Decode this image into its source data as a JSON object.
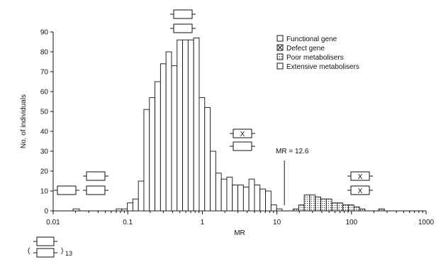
{
  "chart_data": {
    "type": "bar",
    "xlabel": "MR",
    "ylabel": "No. of individuals",
    "x_scale": "log",
    "xlim": [
      0.01,
      1000
    ],
    "ylim": [
      0,
      90
    ],
    "x_ticks": [
      "0.01",
      "0.1",
      "1",
      "10",
      "100",
      "1000"
    ],
    "y_ticks": [
      "0",
      "10",
      "20",
      "30",
      "40",
      "50",
      "60",
      "70",
      "80",
      "90"
    ],
    "legend": {
      "placement": "top-right",
      "entries": [
        "Functional gene",
        "Defect gene",
        "Poor metabolisers",
        "Extensive metabolisers"
      ]
    },
    "annotations": {
      "threshold_label": "MR = 12.6",
      "threshold_value": 12.6,
      "defect_mark": "X",
      "duplication_count": "13"
    },
    "series": [
      {
        "name": "Extensive metabolisers",
        "bins": [
          {
            "x0": 0.0185,
            "x1": 0.0225,
            "value": 1
          },
          {
            "x0": 0.0701,
            "x1": 0.0832,
            "value": 1
          },
          {
            "x0": 0.0832,
            "x1": 0.0987,
            "value": 1
          },
          {
            "x0": 0.0987,
            "x1": 0.1171,
            "value": 4
          },
          {
            "x0": 0.1171,
            "x1": 0.1388,
            "value": 6
          },
          {
            "x0": 0.1388,
            "x1": 0.1646,
            "value": 15
          },
          {
            "x0": 0.1646,
            "x1": 0.1953,
            "value": 51
          },
          {
            "x0": 0.1953,
            "x1": 0.2316,
            "value": 57
          },
          {
            "x0": 0.2316,
            "x1": 0.2747,
            "value": 65
          },
          {
            "x0": 0.2747,
            "x1": 0.3258,
            "value": 74
          },
          {
            "x0": 0.3258,
            "x1": 0.3865,
            "value": 80
          },
          {
            "x0": 0.3865,
            "x1": 0.4584,
            "value": 73
          },
          {
            "x0": 0.4584,
            "x1": 0.5437,
            "value": 86
          },
          {
            "x0": 0.5437,
            "x1": 0.6449,
            "value": 86
          },
          {
            "x0": 0.6449,
            "x1": 0.7649,
            "value": 86
          },
          {
            "x0": 0.7649,
            "x1": 0.9072,
            "value": 87
          },
          {
            "x0": 0.9072,
            "x1": 1.0762,
            "value": 57
          },
          {
            "x0": 1.0762,
            "x1": 1.2764,
            "value": 52
          },
          {
            "x0": 1.2764,
            "x1": 1.5139,
            "value": 30
          },
          {
            "x0": 1.5139,
            "x1": 1.7956,
            "value": 19
          },
          {
            "x0": 1.7956,
            "x1": 2.1298,
            "value": 16
          },
          {
            "x0": 2.1298,
            "x1": 2.5262,
            "value": 17
          },
          {
            "x0": 2.5262,
            "x1": 2.9962,
            "value": 13
          },
          {
            "x0": 2.9962,
            "x1": 3.5538,
            "value": 13
          },
          {
            "x0": 3.5538,
            "x1": 4.2151,
            "value": 12
          },
          {
            "x0": 4.2151,
            "x1": 4.9995,
            "value": 16
          },
          {
            "x0": 4.9995,
            "x1": 5.9298,
            "value": 13
          },
          {
            "x0": 5.9298,
            "x1": 7.0332,
            "value": 11
          },
          {
            "x0": 7.0332,
            "x1": 8.342,
            "value": 10
          },
          {
            "x0": 8.342,
            "x1": 9.8943,
            "value": 3
          },
          {
            "x0": 9.8943,
            "x1": 11.7355,
            "value": 1
          }
        ]
      },
      {
        "name": "Poor metabolisers",
        "bins": [
          {
            "x0": 16.51,
            "x1": 19.59,
            "value": 1
          },
          {
            "x0": 19.59,
            "x1": 23.23,
            "value": 3
          },
          {
            "x0": 23.23,
            "x1": 27.55,
            "value": 8
          },
          {
            "x0": 27.55,
            "x1": 32.68,
            "value": 8
          },
          {
            "x0": 32.68,
            "x1": 38.76,
            "value": 7
          },
          {
            "x0": 38.76,
            "x1": 45.97,
            "value": 6
          },
          {
            "x0": 45.97,
            "x1": 54.53,
            "value": 6
          },
          {
            "x0": 54.53,
            "x1": 64.68,
            "value": 4
          },
          {
            "x0": 64.68,
            "x1": 76.71,
            "value": 4
          },
          {
            "x0": 76.71,
            "x1": 90.99,
            "value": 3
          },
          {
            "x0": 90.99,
            "x1": 107.92,
            "value": 3
          },
          {
            "x0": 107.92,
            "x1": 128.0,
            "value": 2
          },
          {
            "x0": 128.0,
            "x1": 151.82,
            "value": 1
          },
          {
            "x0": 231.0,
            "x1": 276.0,
            "value": 1
          }
        ]
      }
    ]
  }
}
